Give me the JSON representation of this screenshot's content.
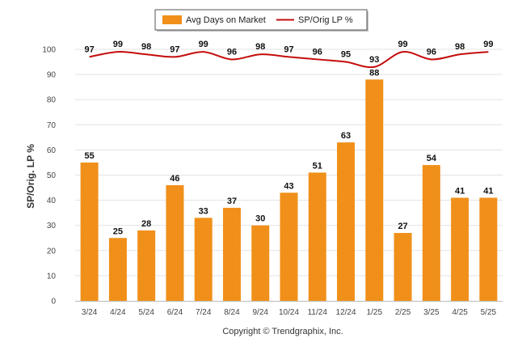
{
  "chart_data": {
    "type": "bar",
    "categories": [
      "3/24",
      "4/24",
      "5/24",
      "6/24",
      "7/24",
      "8/24",
      "9/24",
      "10/24",
      "11/24",
      "12/24",
      "1/25",
      "2/25",
      "3/25",
      "4/25",
      "5/25"
    ],
    "series": [
      {
        "name": "Avg Days on Market",
        "type": "bar",
        "color": "#f0901a",
        "values": [
          55,
          25,
          28,
          46,
          33,
          37,
          30,
          43,
          51,
          63,
          88,
          27,
          54,
          41,
          41
        ]
      },
      {
        "name": "SP/Orig LP %",
        "type": "line",
        "color": "#c40d0d",
        "values": [
          97,
          99,
          98,
          97,
          99,
          96,
          98,
          97,
          96,
          95,
          93,
          99,
          96,
          98,
          99
        ]
      }
    ],
    "ylabel": "SP/Orig. LP %",
    "ylim": [
      0,
      100
    ],
    "yticks": [
      0,
      10,
      20,
      30,
      40,
      50,
      60,
      70,
      80,
      90,
      100
    ],
    "grid": true,
    "legend": "top-center",
    "credit": "Copyright © Trendgraphix, Inc."
  }
}
